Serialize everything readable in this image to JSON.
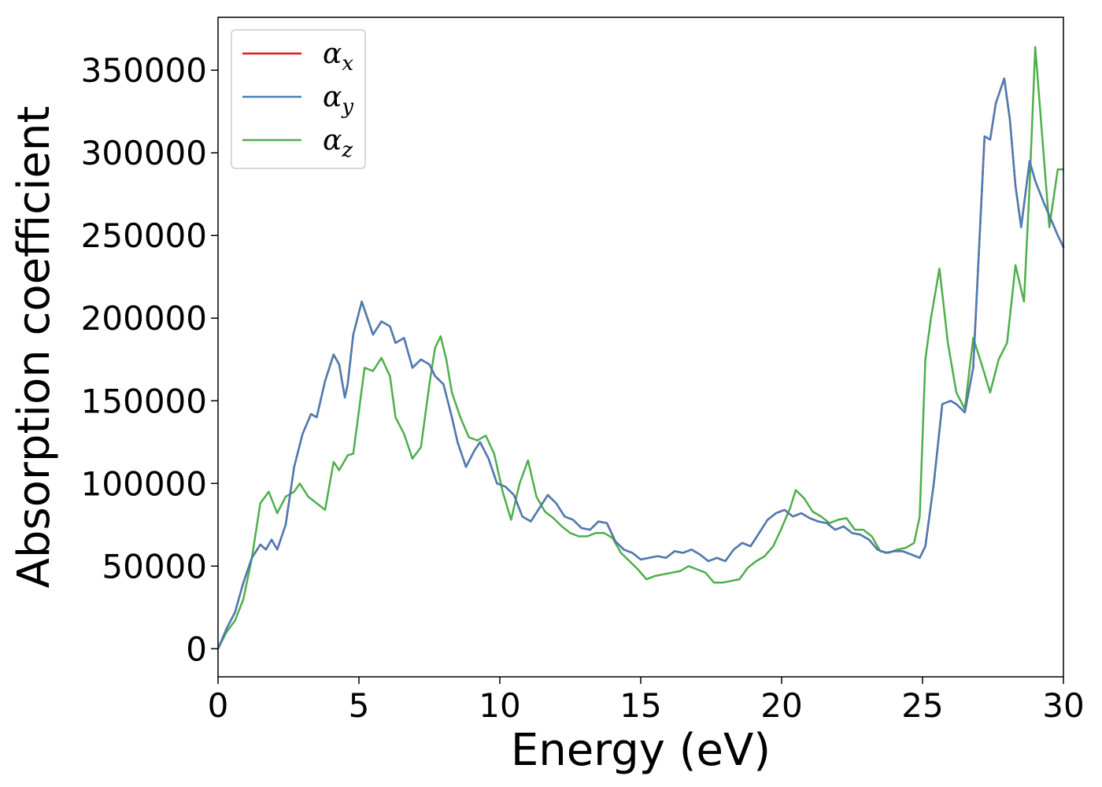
{
  "chart_data": {
    "type": "line",
    "title": "",
    "xlabel": "Energy (eV)",
    "ylabel": "Absorption coefficient",
    "xlim": [
      0,
      30
    ],
    "ylim": [
      -17000,
      382000
    ],
    "xticks": [
      0,
      5,
      10,
      15,
      20,
      25,
      30
    ],
    "xtick_labels": [
      "0",
      "5",
      "10",
      "15",
      "20",
      "25",
      "30"
    ],
    "yticks": [
      0,
      50000,
      100000,
      150000,
      200000,
      250000,
      300000,
      350000
    ],
    "ytick_labels": [
      "0",
      "50000",
      "100000",
      "150000",
      "200000",
      "250000",
      "300000",
      "350000"
    ],
    "grid": false,
    "legend_position": "top-left",
    "series": [
      {
        "name": "α_x",
        "symbol": "α",
        "subscript": "x",
        "color": "#e41a1c",
        "x": [
          0,
          0.3,
          0.6,
          0.9,
          1.2,
          1.5,
          1.7,
          1.9,
          2.1,
          2.4,
          2.7,
          3.0,
          3.3,
          3.5,
          3.8,
          4.1,
          4.3,
          4.5,
          4.6,
          4.8,
          5.1,
          5.2,
          5.5,
          5.8,
          6.1,
          6.3,
          6.6,
          6.9,
          7.2,
          7.5,
          7.7,
          8.0,
          8.3,
          8.5,
          8.8,
          9.1,
          9.3,
          9.6,
          9.9,
          10.2,
          10.5,
          10.8,
          11.1,
          11.4,
          11.7,
          12.0,
          12.3,
          12.6,
          12.9,
          13.2,
          13.5,
          13.8,
          14.1,
          14.4,
          14.7,
          15.0,
          15.3,
          15.6,
          15.9,
          16.2,
          16.5,
          16.8,
          17.1,
          17.4,
          17.7,
          18.0,
          18.3,
          18.6,
          18.9,
          19.2,
          19.5,
          19.8,
          20.1,
          20.4,
          20.7,
          21.0,
          21.3,
          21.6,
          21.9,
          22.2,
          22.5,
          22.8,
          23.1,
          23.4,
          23.7,
          24.0,
          24.3,
          24.6,
          24.9,
          25.1,
          25.4,
          25.7,
          26.0,
          26.2,
          26.5,
          26.8,
          27.0,
          27.2,
          27.4,
          27.6,
          27.9,
          28.1,
          28.3,
          28.5,
          28.8,
          29.0,
          29.3,
          29.6,
          29.8,
          30.0
        ],
        "y": [
          0,
          12000,
          22000,
          40000,
          55000,
          63000,
          60000,
          66000,
          60000,
          75000,
          110000,
          130000,
          142000,
          140000,
          162000,
          178000,
          172000,
          152000,
          160000,
          190000,
          210000,
          205000,
          190000,
          198000,
          195000,
          185000,
          188000,
          170000,
          175000,
          172000,
          165000,
          160000,
          140000,
          125000,
          110000,
          120000,
          125000,
          115000,
          100000,
          98000,
          93000,
          80000,
          77000,
          85000,
          93000,
          88000,
          80000,
          78000,
          73000,
          72000,
          77000,
          76000,
          65000,
          60000,
          58000,
          54000,
          55000,
          56000,
          55000,
          59000,
          58000,
          60000,
          57000,
          53000,
          55000,
          53000,
          60000,
          64000,
          62000,
          70000,
          78000,
          82000,
          84000,
          80000,
          82000,
          79000,
          77000,
          76000,
          72000,
          74000,
          70000,
          69000,
          66000,
          60000,
          58000,
          59000,
          59000,
          57000,
          55000,
          62000,
          100000,
          148000,
          150000,
          148000,
          143000,
          170000,
          240000,
          310000,
          308000,
          330000,
          345000,
          320000,
          280000,
          255000,
          295000,
          283000,
          270000,
          258000,
          250000,
          243000
        ]
      },
      {
        "name": "α_y",
        "symbol": "α",
        "subscript": "y",
        "color": "#4a7db5",
        "x": [
          0,
          0.3,
          0.6,
          0.9,
          1.2,
          1.5,
          1.7,
          1.9,
          2.1,
          2.4,
          2.7,
          3.0,
          3.3,
          3.5,
          3.8,
          4.1,
          4.3,
          4.5,
          4.6,
          4.8,
          5.1,
          5.2,
          5.5,
          5.8,
          6.1,
          6.3,
          6.6,
          6.9,
          7.2,
          7.5,
          7.7,
          8.0,
          8.3,
          8.5,
          8.8,
          9.1,
          9.3,
          9.6,
          9.9,
          10.2,
          10.5,
          10.8,
          11.1,
          11.4,
          11.7,
          12.0,
          12.3,
          12.6,
          12.9,
          13.2,
          13.5,
          13.8,
          14.1,
          14.4,
          14.7,
          15.0,
          15.3,
          15.6,
          15.9,
          16.2,
          16.5,
          16.8,
          17.1,
          17.4,
          17.7,
          18.0,
          18.3,
          18.6,
          18.9,
          19.2,
          19.5,
          19.8,
          20.1,
          20.4,
          20.7,
          21.0,
          21.3,
          21.6,
          21.9,
          22.2,
          22.5,
          22.8,
          23.1,
          23.4,
          23.7,
          24.0,
          24.3,
          24.6,
          24.9,
          25.1,
          25.4,
          25.7,
          26.0,
          26.2,
          26.5,
          26.8,
          27.0,
          27.2,
          27.4,
          27.6,
          27.9,
          28.1,
          28.3,
          28.5,
          28.8,
          29.0,
          29.3,
          29.6,
          29.8,
          30.0
        ],
        "y": [
          0,
          12000,
          22000,
          40000,
          55000,
          63000,
          60000,
          66000,
          60000,
          75000,
          110000,
          130000,
          142000,
          140000,
          162000,
          178000,
          172000,
          152000,
          160000,
          190000,
          210000,
          205000,
          190000,
          198000,
          195000,
          185000,
          188000,
          170000,
          175000,
          172000,
          165000,
          160000,
          140000,
          125000,
          110000,
          120000,
          125000,
          115000,
          100000,
          98000,
          93000,
          80000,
          77000,
          85000,
          93000,
          88000,
          80000,
          78000,
          73000,
          72000,
          77000,
          76000,
          65000,
          60000,
          58000,
          54000,
          55000,
          56000,
          55000,
          59000,
          58000,
          60000,
          57000,
          53000,
          55000,
          53000,
          60000,
          64000,
          62000,
          70000,
          78000,
          82000,
          84000,
          80000,
          82000,
          79000,
          77000,
          76000,
          72000,
          74000,
          70000,
          69000,
          66000,
          60000,
          58000,
          59000,
          59000,
          57000,
          55000,
          62000,
          100000,
          148000,
          150000,
          148000,
          143000,
          170000,
          240000,
          310000,
          308000,
          330000,
          345000,
          320000,
          280000,
          255000,
          295000,
          283000,
          270000,
          258000,
          250000,
          243000
        ]
      },
      {
        "name": "α_z",
        "symbol": "α",
        "subscript": "z",
        "color": "#4daf4a",
        "x": [
          0,
          0.3,
          0.6,
          0.9,
          1.2,
          1.5,
          1.8,
          2.1,
          2.4,
          2.7,
          2.9,
          3.2,
          3.5,
          3.8,
          4.1,
          4.3,
          4.6,
          4.8,
          5.2,
          5.5,
          5.8,
          6.1,
          6.3,
          6.6,
          6.9,
          7.2,
          7.5,
          7.7,
          7.9,
          8.1,
          8.3,
          8.6,
          8.9,
          9.2,
          9.5,
          9.8,
          10.1,
          10.4,
          10.7,
          11.0,
          11.3,
          11.6,
          11.9,
          12.2,
          12.5,
          12.8,
          13.1,
          13.4,
          13.7,
          14.0,
          14.3,
          14.6,
          14.9,
          15.2,
          15.5,
          15.8,
          16.1,
          16.4,
          16.7,
          17.0,
          17.3,
          17.6,
          17.9,
          18.2,
          18.5,
          18.8,
          19.1,
          19.4,
          19.7,
          20.0,
          20.3,
          20.5,
          20.8,
          21.1,
          21.4,
          21.7,
          22.0,
          22.3,
          22.6,
          22.9,
          23.2,
          23.5,
          23.8,
          24.1,
          24.4,
          24.7,
          24.9,
          25.1,
          25.3,
          25.6,
          25.9,
          26.2,
          26.5,
          26.8,
          27.1,
          27.4,
          27.7,
          28.0,
          28.3,
          28.6,
          28.8,
          29.0,
          29.2,
          29.5,
          29.8,
          30.0
        ],
        "y": [
          0,
          10000,
          17000,
          30000,
          55000,
          88000,
          95000,
          82000,
          92000,
          95000,
          100000,
          92000,
          88000,
          84000,
          113000,
          108000,
          117000,
          118000,
          170000,
          168000,
          176000,
          165000,
          140000,
          130000,
          115000,
          122000,
          160000,
          182000,
          189000,
          175000,
          155000,
          140000,
          128000,
          126000,
          129000,
          118000,
          95000,
          78000,
          100000,
          114000,
          92000,
          83000,
          79000,
          74000,
          70000,
          68000,
          68000,
          70000,
          70000,
          67000,
          58000,
          53000,
          48000,
          42000,
          44000,
          45000,
          46000,
          47000,
          50000,
          48000,
          46000,
          40000,
          40000,
          41000,
          42000,
          49000,
          53000,
          56000,
          62000,
          73000,
          85000,
          96000,
          91000,
          83000,
          80000,
          76000,
          78000,
          79000,
          72000,
          72000,
          68000,
          59000,
          58000,
          60000,
          61000,
          64000,
          80000,
          175000,
          200000,
          230000,
          185000,
          155000,
          145000,
          188000,
          172000,
          155000,
          175000,
          185000,
          232000,
          210000,
          280000,
          364000,
          320000,
          255000,
          290000,
          290000
        ]
      }
    ]
  }
}
